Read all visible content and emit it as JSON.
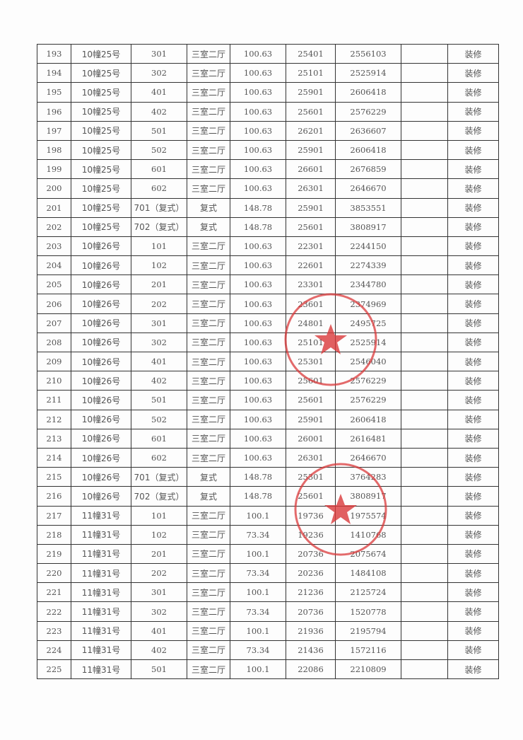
{
  "rows": [
    [
      "193",
      "10幢25号",
      "301",
      "三室二厅",
      "100.63",
      "25401",
      "2556103",
      "",
      "装修"
    ],
    [
      "194",
      "10幢25号",
      "302",
      "三室二厅",
      "100.63",
      "25101",
      "2525914",
      "",
      "装修"
    ],
    [
      "195",
      "10幢25号",
      "401",
      "三室二厅",
      "100.63",
      "25901",
      "2606418",
      "",
      "装修"
    ],
    [
      "196",
      "10幢25号",
      "402",
      "三室二厅",
      "100.63",
      "25601",
      "2576229",
      "",
      "装修"
    ],
    [
      "197",
      "10幢25号",
      "501",
      "三室二厅",
      "100.63",
      "26201",
      "2636607",
      "",
      "装修"
    ],
    [
      "198",
      "10幢25号",
      "502",
      "三室二厅",
      "100.63",
      "25901",
      "2606418",
      "",
      "装修"
    ],
    [
      "199",
      "10幢25号",
      "601",
      "三室二厅",
      "100.63",
      "26601",
      "2676859",
      "",
      "装修"
    ],
    [
      "200",
      "10幢25号",
      "602",
      "三室二厅",
      "100.63",
      "26301",
      "2646670",
      "",
      "装修"
    ],
    [
      "201",
      "10幢25号",
      "701（复式）",
      "复式",
      "148.78",
      "25901",
      "3853551",
      "",
      "装修"
    ],
    [
      "202",
      "10幢25号",
      "702（复式）",
      "复式",
      "148.78",
      "25601",
      "3808917",
      "",
      "装修"
    ],
    [
      "203",
      "10幢26号",
      "101",
      "三室二厅",
      "100.63",
      "22301",
      "2244150",
      "",
      "装修"
    ],
    [
      "204",
      "10幢26号",
      "102",
      "三室二厅",
      "100.63",
      "22601",
      "2274339",
      "",
      "装修"
    ],
    [
      "205",
      "10幢26号",
      "201",
      "三室二厅",
      "100.63",
      "23301",
      "2344780",
      "",
      "装修"
    ],
    [
      "206",
      "10幢26号",
      "202",
      "三室二厅",
      "100.63",
      "23601",
      "2374969",
      "",
      "装修"
    ],
    [
      "207",
      "10幢26号",
      "301",
      "三室二厅",
      "100.63",
      "24801",
      "2495725",
      "",
      "装修"
    ],
    [
      "208",
      "10幢26号",
      "302",
      "三室二厅",
      "100.63",
      "25101",
      "2525914",
      "",
      "装修"
    ],
    [
      "209",
      "10幢26号",
      "401",
      "三室二厅",
      "100.63",
      "25301",
      "2546040",
      "",
      "装修"
    ],
    [
      "210",
      "10幢26号",
      "402",
      "三室二厅",
      "100.63",
      "25601",
      "2576229",
      "",
      "装修"
    ],
    [
      "211",
      "10幢26号",
      "501",
      "三室二厅",
      "100.63",
      "25601",
      "2576229",
      "",
      "装修"
    ],
    [
      "212",
      "10幢26号",
      "502",
      "三室二厅",
      "100.63",
      "25901",
      "2606418",
      "",
      "装修"
    ],
    [
      "213",
      "10幢26号",
      "601",
      "三室二厅",
      "100.63",
      "26001",
      "2616481",
      "",
      "装修"
    ],
    [
      "214",
      "10幢26号",
      "602",
      "三室二厅",
      "100.63",
      "26301",
      "2646670",
      "",
      "装修"
    ],
    [
      "215",
      "10幢26号",
      "701（复式）",
      "复式",
      "148.78",
      "25301",
      "3764283",
      "",
      "装修"
    ],
    [
      "216",
      "10幢26号",
      "702（复式）",
      "复式",
      "148.78",
      "25601",
      "3808917",
      "",
      "装修"
    ],
    [
      "217",
      "11幢31号",
      "101",
      "三室二厅",
      "100.1",
      "19736",
      "1975574",
      "",
      "装修"
    ],
    [
      "218",
      "11幢31号",
      "102",
      "三室二厅",
      "73.34",
      "19236",
      "1410768",
      "",
      "装修"
    ],
    [
      "219",
      "11幢31号",
      "201",
      "三室二厅",
      "100.1",
      "20736",
      "2075674",
      "",
      "装修"
    ],
    [
      "220",
      "11幢31号",
      "202",
      "三室二厅",
      "73.34",
      "20236",
      "1484108",
      "",
      "装修"
    ],
    [
      "221",
      "11幢31号",
      "301",
      "三室二厅",
      "100.1",
      "21236",
      "2125724",
      "",
      "装修"
    ],
    [
      "222",
      "11幢31号",
      "302",
      "三室二厅",
      "73.34",
      "20736",
      "1520778",
      "",
      "装修"
    ],
    [
      "223",
      "11幢31号",
      "401",
      "三室二厅",
      "100.1",
      "21936",
      "2195794",
      "",
      "装修"
    ],
    [
      "224",
      "11幢31号",
      "402",
      "三室二厅",
      "73.34",
      "21436",
      "1572116",
      "",
      "装修"
    ],
    [
      "225",
      "11幢31号",
      "501",
      "三室二厅",
      "100.1",
      "22086",
      "2210809",
      "",
      "装修"
    ]
  ],
  "stamp_color": "#d9383a"
}
